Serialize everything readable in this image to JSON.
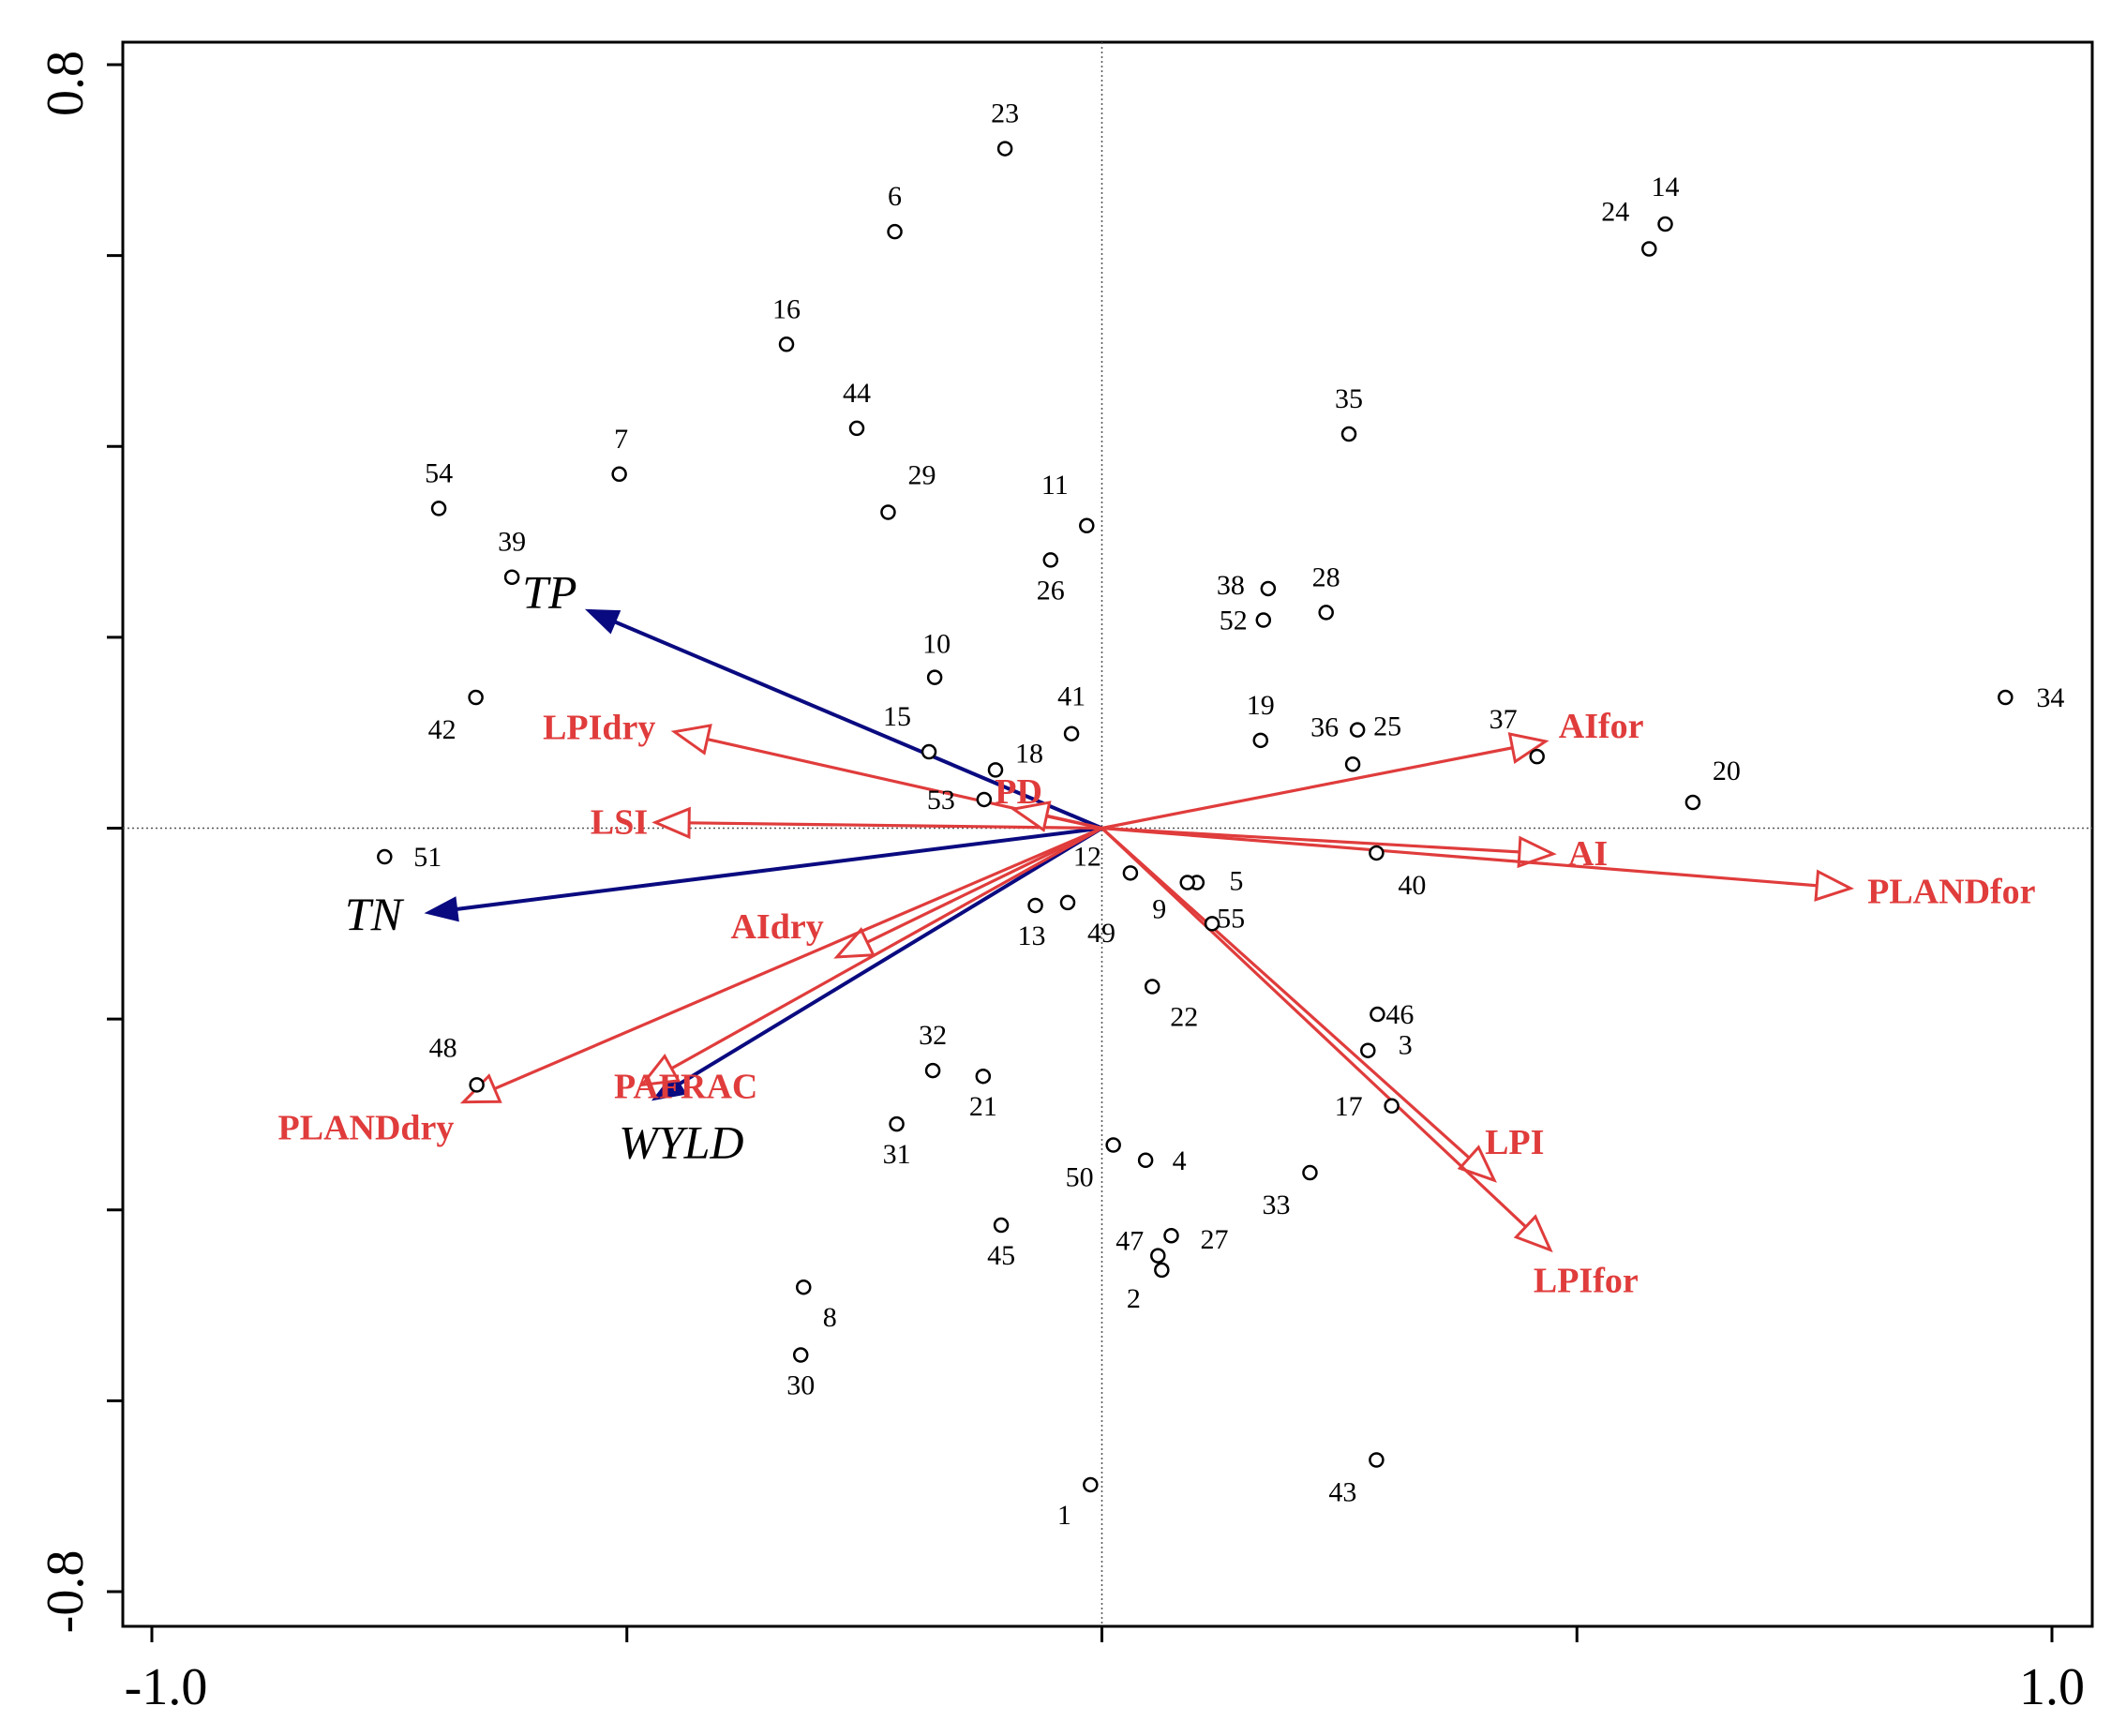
{
  "chart_data": {
    "type": "scatter",
    "subtype": "rda-biplot",
    "title": "",
    "xlim": [
      -1.0,
      1.0
    ],
    "ylim": [
      -0.8,
      0.8
    ],
    "x_tick_labels": [
      "-1.0",
      "1.0"
    ],
    "y_tick_labels": [
      "0.8",
      "-0.8"
    ],
    "x_ticks": [
      -1.0,
      -0.5,
      0.0,
      0.5,
      1.0
    ],
    "y_ticks": [
      0.8,
      0.6,
      0.4,
      0.2,
      0.0,
      -0.2,
      -0.4,
      -0.6,
      -0.8
    ],
    "colors": {
      "sites": "#000000",
      "env": "#0a0a80",
      "landscape": "#e03c3c"
    },
    "sites": [
      {
        "label": "1",
        "x": -0.012,
        "y": -0.688
      },
      {
        "label": "2",
        "x": 0.063,
        "y": -0.463
      },
      {
        "label": "3",
        "x": 0.28,
        "y": -0.233
      },
      {
        "label": "4",
        "x": 0.046,
        "y": -0.348
      },
      {
        "label": "5",
        "x": 0.1,
        "y": -0.057
      },
      {
        "label": "6",
        "x": -0.218,
        "y": 0.625
      },
      {
        "label": "7",
        "x": -0.508,
        "y": 0.371
      },
      {
        "label": "8",
        "x": -0.314,
        "y": -0.481
      },
      {
        "label": "9",
        "x": 0.09,
        "y": -0.057
      },
      {
        "label": "10",
        "x": -0.176,
        "y": 0.158
      },
      {
        "label": "11",
        "x": -0.016,
        "y": 0.317
      },
      {
        "label": "12",
        "x": 0.03,
        "y": -0.047
      },
      {
        "label": "13",
        "x": -0.07,
        "y": -0.081
      },
      {
        "label": "14",
        "x": 0.593,
        "y": 0.633
      },
      {
        "label": "15",
        "x": -0.182,
        "y": 0.08
      },
      {
        "label": "16",
        "x": -0.332,
        "y": 0.507
      },
      {
        "label": "17",
        "x": 0.305,
        "y": -0.291
      },
      {
        "label": "18",
        "x": -0.112,
        "y": 0.061
      },
      {
        "label": "19",
        "x": 0.167,
        "y": 0.092
      },
      {
        "label": "20",
        "x": 0.622,
        "y": 0.027
      },
      {
        "label": "21",
        "x": -0.125,
        "y": -0.26
      },
      {
        "label": "22",
        "x": 0.053,
        "y": -0.166
      },
      {
        "label": "23",
        "x": -0.102,
        "y": 0.712
      },
      {
        "label": "24",
        "x": 0.576,
        "y": 0.607
      },
      {
        "label": "25",
        "x": 0.269,
        "y": 0.103
      },
      {
        "label": "26",
        "x": -0.054,
        "y": 0.281
      },
      {
        "label": "27",
        "x": 0.073,
        "y": -0.427
      },
      {
        "label": "28",
        "x": 0.236,
        "y": 0.226
      },
      {
        "label": "29",
        "x": -0.225,
        "y": 0.331
      },
      {
        "label": "30",
        "x": -0.317,
        "y": -0.552
      },
      {
        "label": "31",
        "x": -0.216,
        "y": -0.31
      },
      {
        "label": "32",
        "x": -0.178,
        "y": -0.254
      },
      {
        "label": "33",
        "x": 0.219,
        "y": -0.361
      },
      {
        "label": "34",
        "x": 0.951,
        "y": 0.137
      },
      {
        "label": "35",
        "x": 0.26,
        "y": 0.413
      },
      {
        "label": "36",
        "x": 0.264,
        "y": 0.067
      },
      {
        "label": "37",
        "x": 0.458,
        "y": 0.075
      },
      {
        "label": "38",
        "x": 0.175,
        "y": 0.251
      },
      {
        "label": "39",
        "x": -0.621,
        "y": 0.263
      },
      {
        "label": "40",
        "x": 0.289,
        "y": -0.026
      },
      {
        "label": "41",
        "x": -0.032,
        "y": 0.099
      },
      {
        "label": "42",
        "x": -0.659,
        "y": 0.137
      },
      {
        "label": "43",
        "x": 0.289,
        "y": -0.662
      },
      {
        "label": "44",
        "x": -0.258,
        "y": 0.419
      },
      {
        "label": "45",
        "x": -0.106,
        "y": -0.416
      },
      {
        "label": "46",
        "x": 0.29,
        "y": -0.195
      },
      {
        "label": "47",
        "x": 0.059,
        "y": -0.448
      },
      {
        "label": "48",
        "x": -0.658,
        "y": -0.269
      },
      {
        "label": "49",
        "x": -0.036,
        "y": -0.078
      },
      {
        "label": "50",
        "x": 0.012,
        "y": -0.332
      },
      {
        "label": "51",
        "x": -0.755,
        "y": -0.03
      },
      {
        "label": "52",
        "x": 0.17,
        "y": 0.218
      },
      {
        "label": "53",
        "x": -0.124,
        "y": 0.03
      },
      {
        "label": "54",
        "x": -0.698,
        "y": 0.335
      },
      {
        "label": "55",
        "x": 0.116,
        "y": -0.1
      }
    ],
    "env_vectors": [
      {
        "name": "TP",
        "x": -0.543,
        "y": 0.229
      },
      {
        "name": "TN",
        "x": -0.712,
        "y": -0.089
      },
      {
        "name": "WYLD",
        "x": -0.473,
        "y": -0.285
      }
    ],
    "landscape_vectors": [
      {
        "name": "LPIdry",
        "x": -0.45,
        "y": 0.101
      },
      {
        "name": "LSI",
        "x": -0.47,
        "y": 0.006
      },
      {
        "name": "PD",
        "x": -0.093,
        "y": 0.02
      },
      {
        "name": "AIdry",
        "x": -0.279,
        "y": -0.135
      },
      {
        "name": "PAFRAC",
        "x": -0.484,
        "y": -0.269
      },
      {
        "name": "PLANDdry",
        "x": -0.672,
        "y": -0.287
      },
      {
        "name": "AIfor",
        "x": 0.467,
        "y": 0.091
      },
      {
        "name": "AI",
        "x": 0.475,
        "y": -0.027
      },
      {
        "name": "PLANDfor",
        "x": 0.788,
        "y": -0.063
      },
      {
        "name": "LPI",
        "x": 0.413,
        "y": -0.369
      },
      {
        "name": "LPIfor",
        "x": 0.472,
        "y": -0.442
      }
    ]
  }
}
